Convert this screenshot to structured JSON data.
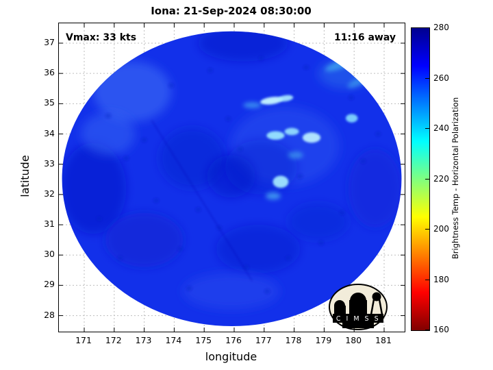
{
  "figure": {
    "title": "Iona: 21-Sep-2024 08:30:00",
    "vmax_label": "Vmax: 33 kts",
    "eta_label": "11:16 away"
  },
  "logo": {
    "name": "CIMSS",
    "text": "C I M S S"
  },
  "chart_data": {
    "type": "heatmap",
    "title": "Iona: 21-Sep-2024 08:30:00",
    "xlabel": "longitude",
    "ylabel": "latitude",
    "xlim": [
      170.155,
      181.685
    ],
    "ylim": [
      27.47,
      37.656
    ],
    "xticks": [
      171,
      172,
      173,
      174,
      175,
      176,
      177,
      178,
      179,
      180,
      181
    ],
    "yticks": [
      28,
      29,
      30,
      31,
      32,
      33,
      34,
      35,
      36,
      37
    ],
    "grid": true,
    "annotations": [
      {
        "text": "Vmax: 33 kts",
        "pos": "top-left"
      },
      {
        "text": "11:16 away",
        "pos": "top-right"
      }
    ],
    "colorbar": {
      "label": "Brightness Temp - Horizontal Polarization",
      "min": 160,
      "max": 280,
      "ticks": [
        160,
        180,
        200,
        220,
        240,
        260,
        280
      ],
      "colormap": "jet-reversed-top-cold",
      "stops_top_to_bottom": [
        {
          "t": 0.0,
          "color": "#00008f"
        },
        {
          "t": 0.125,
          "color": "#0000ff"
        },
        {
          "t": 0.375,
          "color": "#00ffff"
        },
        {
          "t": 0.625,
          "color": "#ffff00"
        },
        {
          "t": 0.875,
          "color": "#ff0000"
        },
        {
          "t": 1.0,
          "color": "#800000"
        }
      ]
    },
    "swath": {
      "shape": "ellipse",
      "center_lon": 175.92,
      "center_lat": 32.52,
      "radius_lon": 5.66,
      "radius_lat": 4.87,
      "base_color": "#1230ea",
      "approx_mean_temp_k": 258
    },
    "features": [
      {
        "lon": 171.3,
        "lat": 32.2,
        "rlon": 1.1,
        "rlat": 1.5,
        "color": "#0a1ac8",
        "opacity": 0.55,
        "blur": 8
      },
      {
        "lon": 172.6,
        "lat": 35.4,
        "rlon": 1.3,
        "rlat": 1.0,
        "color": "#3a68f4",
        "opacity": 0.65,
        "blur": 8
      },
      {
        "lon": 171.8,
        "lat": 34.0,
        "rlon": 0.9,
        "rlat": 0.7,
        "color": "#3a68f4",
        "opacity": 0.5,
        "blur": 8
      },
      {
        "lon": 176.3,
        "lat": 37.0,
        "rlon": 1.5,
        "rlat": 0.6,
        "color": "#0a1ac8",
        "opacity": 0.5,
        "blur": 8
      },
      {
        "lon": 174.6,
        "lat": 33.2,
        "rlon": 1.1,
        "rlat": 1.0,
        "color": "#0d1ecd",
        "opacity": 0.45,
        "blur": 8
      },
      {
        "lon": 173.0,
        "lat": 30.5,
        "rlon": 1.3,
        "rlat": 0.9,
        "color": "#0d1ecd",
        "opacity": 0.5,
        "blur": 8
      },
      {
        "lon": 176.8,
        "lat": 30.2,
        "rlon": 1.4,
        "rlat": 0.8,
        "color": "#0c1dc8",
        "opacity": 0.4,
        "blur": 8
      },
      {
        "lon": 180.7,
        "lat": 32.2,
        "rlon": 0.9,
        "rlat": 1.3,
        "color": "#0f22d2",
        "opacity": 0.45,
        "blur": 8
      },
      {
        "lon": 177.7,
        "lat": 33.6,
        "rlon": 1.8,
        "rlat": 1.3,
        "color": "#2a52f0",
        "opacity": 0.5,
        "blur": 8
      },
      {
        "lon": 175.9,
        "lat": 28.8,
        "rlon": 1.6,
        "rlat": 0.6,
        "color": "#2c50ee",
        "opacity": 0.45,
        "blur": 8
      },
      {
        "lon": 175.9,
        "lat": 32.6,
        "rlon": 0.8,
        "rlat": 0.7,
        "color": "#0b1cc6",
        "opacity": 0.5,
        "blur": 8
      },
      {
        "lon": 178.8,
        "lat": 31.1,
        "rlon": 1.0,
        "rlat": 0.6,
        "color": "#0f20d0",
        "opacity": 0.4,
        "blur": 8
      },
      {
        "lon": 176.9,
        "lat": 32.9,
        "rlon": 1.2,
        "rlat": 0.9,
        "color": "#0c1dc8",
        "opacity": 0.35,
        "blur": 8
      },
      {
        "lon": 179.7,
        "lat": 36.0,
        "rlon": 0.9,
        "rlat": 0.5,
        "color": "#2f7ae8",
        "opacity": 0.45,
        "blur": 8
      },
      {
        "lon": 179.55,
        "lat": 36.3,
        "rlon": 0.55,
        "rlat": 0.14,
        "color": "#49c0f0",
        "opacity": 0.6,
        "blur": 4,
        "rot": -20
      },
      {
        "lon": 180.1,
        "lat": 35.7,
        "rlon": 0.35,
        "rlat": 0.12,
        "color": "#49c0f0",
        "opacity": 0.5,
        "blur": 4,
        "rot": -25
      },
      {
        "lon": 176.6,
        "lat": 34.95,
        "rlon": 0.3,
        "rlat": 0.1,
        "color": "#55d0f5",
        "opacity": 0.55,
        "blur": 4
      },
      {
        "lon": 178.05,
        "lat": 33.3,
        "rlon": 0.25,
        "rlat": 0.12,
        "color": "#50c8f0",
        "opacity": 0.5,
        "blur": 4
      },
      {
        "lon": 177.3,
        "lat": 31.95,
        "rlon": 0.25,
        "rlat": 0.12,
        "color": "#58d0f4",
        "opacity": 0.6,
        "blur": 4
      },
      {
        "lon": 177.25,
        "lat": 35.1,
        "rlon": 0.38,
        "rlat": 0.12,
        "color": "#c6f6ff",
        "opacity": 0.95,
        "blur": 2,
        "rot": -8
      },
      {
        "lon": 177.72,
        "lat": 35.18,
        "rlon": 0.25,
        "rlat": 0.1,
        "color": "#aceeff",
        "opacity": 0.9,
        "blur": 2,
        "rot": -8
      },
      {
        "lon": 177.38,
        "lat": 33.95,
        "rlon": 0.3,
        "rlat": 0.14,
        "color": "#9fecff",
        "opacity": 0.9,
        "blur": 2
      },
      {
        "lon": 177.92,
        "lat": 34.08,
        "rlon": 0.24,
        "rlat": 0.12,
        "color": "#9fecff",
        "opacity": 0.85,
        "blur": 2
      },
      {
        "lon": 178.58,
        "lat": 33.88,
        "rlon": 0.3,
        "rlat": 0.17,
        "color": "#c0f4ff",
        "opacity": 0.9,
        "blur": 2
      },
      {
        "lon": 179.92,
        "lat": 34.52,
        "rlon": 0.2,
        "rlat": 0.14,
        "color": "#8ce6ff",
        "opacity": 0.85,
        "blur": 2
      },
      {
        "lon": 177.55,
        "lat": 32.42,
        "rlon": 0.26,
        "rlat": 0.2,
        "color": "#a8eeff",
        "opacity": 0.9,
        "blur": 2
      }
    ],
    "speckles": [
      [
        171.8,
        34.6
      ],
      [
        172.4,
        33.2
      ],
      [
        171.5,
        31.2
      ],
      [
        172.2,
        29.9
      ],
      [
        173.4,
        31.8
      ],
      [
        173.0,
        33.8
      ],
      [
        174.2,
        30.2
      ],
      [
        174.8,
        31.5
      ],
      [
        175.5,
        30.9
      ],
      [
        176.4,
        29.6
      ],
      [
        177.8,
        29.9
      ],
      [
        178.9,
        30.4
      ],
      [
        179.6,
        31.4
      ],
      [
        180.3,
        33.1
      ],
      [
        179.9,
        35.2
      ],
      [
        178.4,
        36.2
      ],
      [
        176.9,
        36.5
      ],
      [
        175.2,
        36.1
      ],
      [
        173.9,
        35.6
      ],
      [
        175.8,
        34.5
      ],
      [
        176.2,
        33.5
      ],
      [
        178.2,
        32.6
      ],
      [
        180.8,
        34.0
      ],
      [
        174.5,
        28.9
      ],
      [
        177.1,
        28.8
      ]
    ],
    "artifact_line": {
      "from": [
        173.25,
        34.45
      ],
      "to": [
        176.6,
        29.15
      ],
      "color": "#0a18b8"
    }
  }
}
